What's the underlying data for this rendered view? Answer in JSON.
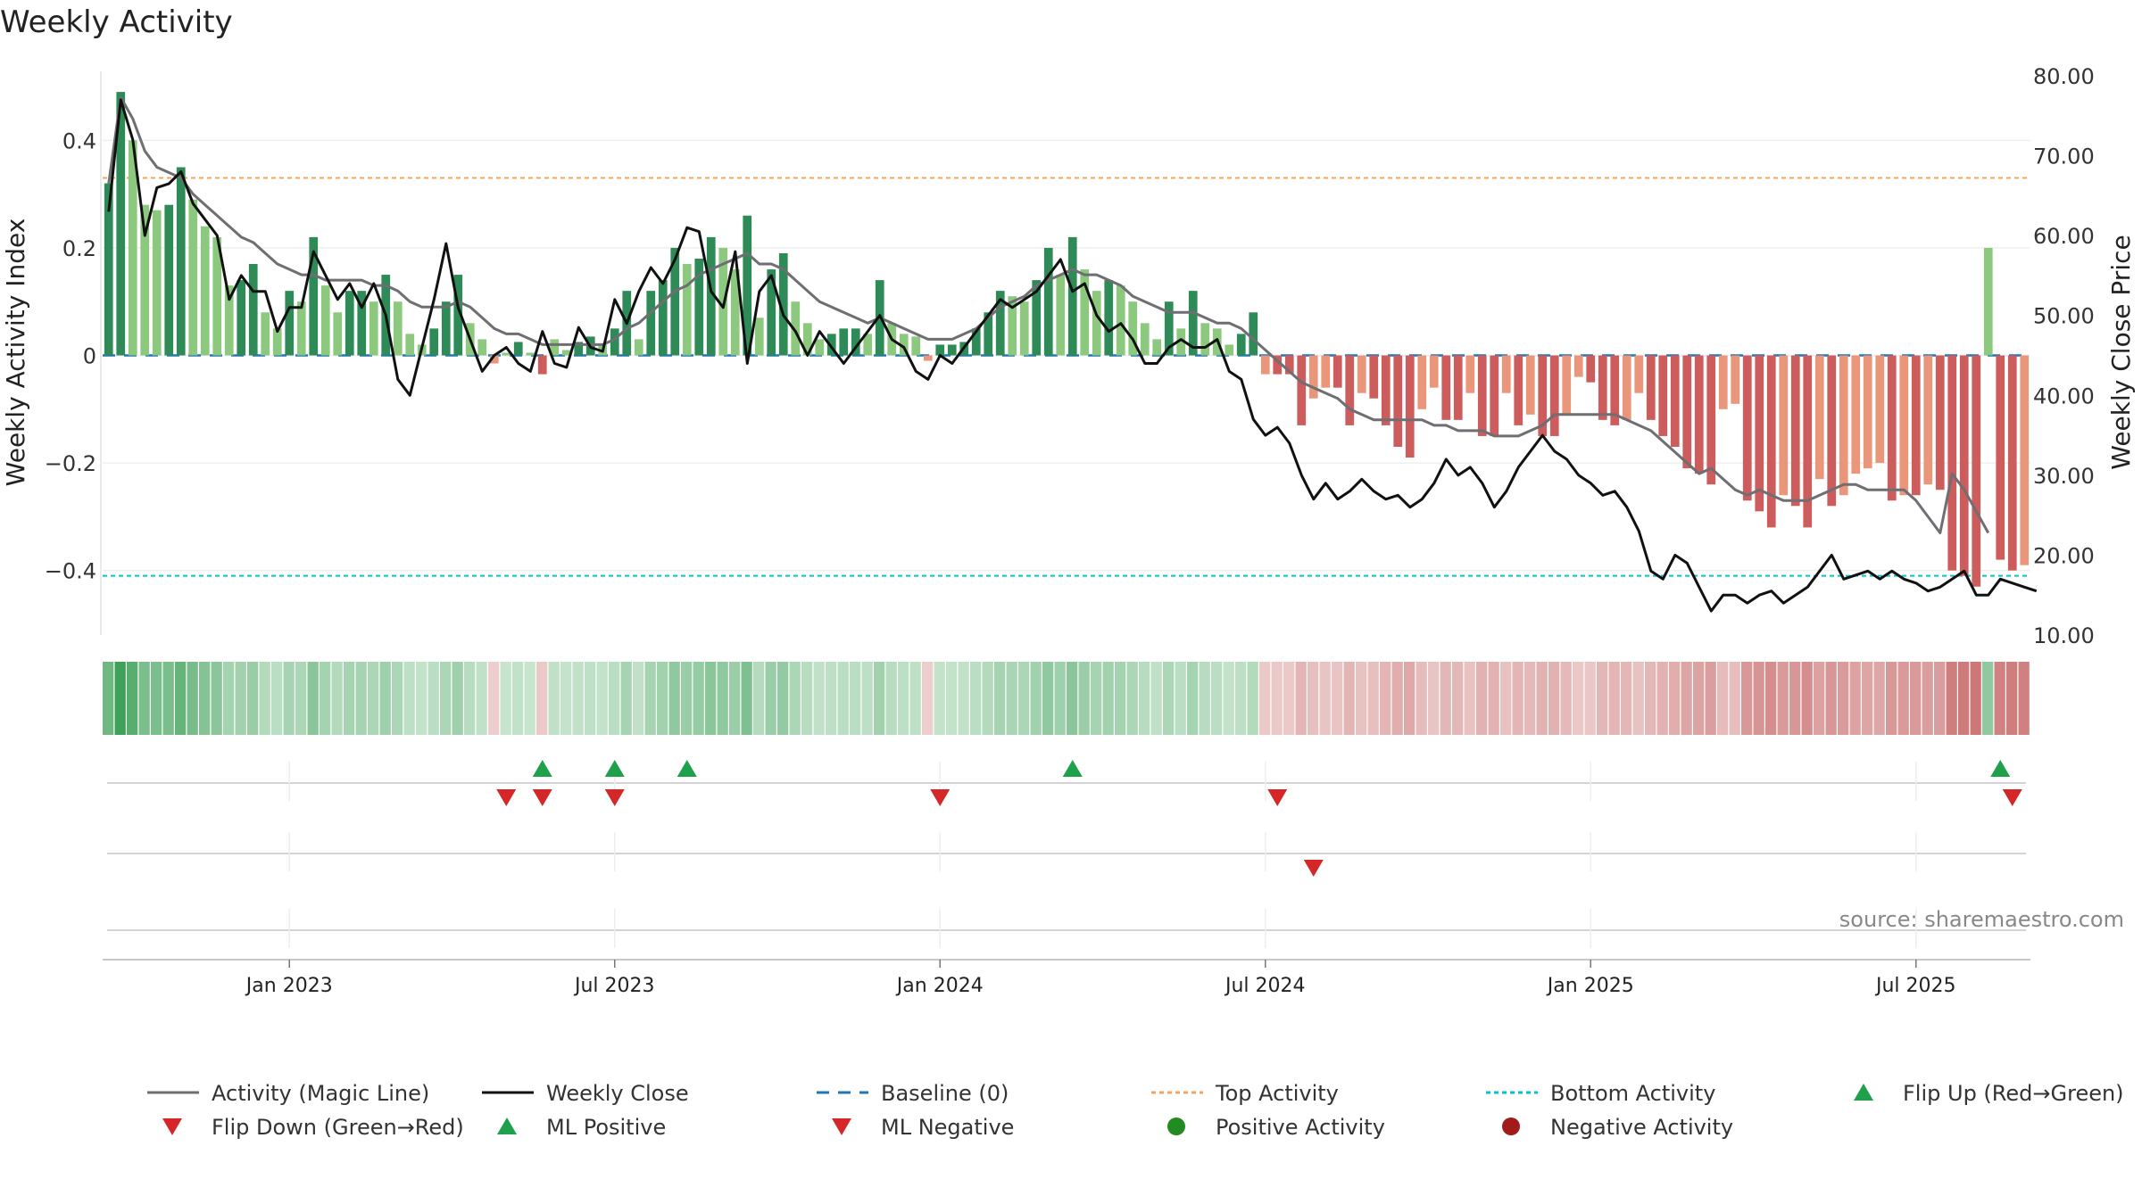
{
  "chart_data": {
    "type": "bar",
    "title": "Weekly Activity",
    "ylabel": "Weekly Activity Index",
    "ylabel_right": "Weekly Close Price",
    "source": "source: sharemaestro.com",
    "ylim": [
      -0.52,
      0.52
    ],
    "ylim_right": [
      10,
      80
    ],
    "yticks": [
      {
        "value": 0.4,
        "label": "0.4"
      },
      {
        "value": 0.2,
        "label": "0.2"
      },
      {
        "value": 0,
        "label": "0"
      },
      {
        "value": -0.2,
        "label": "−0.2"
      },
      {
        "value": -0.4,
        "label": "−0.4"
      }
    ],
    "yticks_right": [
      {
        "value": 80,
        "label": "80.00"
      },
      {
        "value": 70,
        "label": "70.00"
      },
      {
        "value": 60,
        "label": "60.00"
      },
      {
        "value": 50,
        "label": "50.00"
      },
      {
        "value": 40,
        "label": "40.00"
      },
      {
        "value": 30,
        "label": "30.00"
      },
      {
        "value": 20,
        "label": "20.00"
      },
      {
        "value": 10,
        "label": "10.00"
      }
    ],
    "xticks": [
      {
        "index": 15,
        "label": "Jan 2023"
      },
      {
        "index": 42,
        "label": "Jul 2023"
      },
      {
        "index": 69,
        "label": "Jan 2024"
      },
      {
        "index": 96,
        "label": "Jul 2024"
      },
      {
        "index": 123,
        "label": "Jan 2025"
      },
      {
        "index": 150,
        "label": "Jul 2025"
      }
    ],
    "top_activity": 0.33,
    "bottom_activity": -0.41,
    "activity": [
      0.32,
      0.49,
      0.4,
      0.28,
      0.27,
      0.28,
      0.35,
      0.29,
      0.24,
      0.22,
      0.13,
      0.14,
      0.17,
      0.08,
      0.05,
      0.12,
      0.1,
      0.22,
      0.13,
      0.08,
      0.12,
      0.12,
      0.1,
      0.15,
      0.1,
      0.04,
      0.02,
      0.05,
      0.1,
      0.15,
      0.06,
      0.03,
      -0.015,
      0.005,
      0.025,
      0.005,
      -0.035,
      0.03,
      0.01,
      0.025,
      0.035,
      0.02,
      0.05,
      0.12,
      0.03,
      0.12,
      0.14,
      0.2,
      0.17,
      0.18,
      0.22,
      0.2,
      0.16,
      0.26,
      0.07,
      0.16,
      0.19,
      0.1,
      0.06,
      0.03,
      0.04,
      0.05,
      0.05,
      0.04,
      0.14,
      0.06,
      0.04,
      0.035,
      -0.01,
      0.02,
      0.02,
      0.025,
      0.05,
      0.08,
      0.12,
      0.11,
      0.1,
      0.14,
      0.2,
      0.15,
      0.22,
      0.16,
      0.12,
      0.14,
      0.13,
      0.1,
      0.06,
      0.03,
      0.1,
      0.05,
      0.12,
      0.06,
      0.05,
      0.02,
      0.04,
      0.08,
      -0.035,
      -0.035,
      -0.035,
      -0.13,
      -0.08,
      -0.06,
      -0.06,
      -0.13,
      -0.07,
      -0.08,
      -0.13,
      -0.17,
      -0.19,
      -0.1,
      -0.06,
      -0.12,
      -0.12,
      -0.07,
      -0.15,
      -0.15,
      -0.07,
      -0.13,
      -0.11,
      -0.15,
      -0.15,
      -0.11,
      -0.04,
      -0.05,
      -0.12,
      -0.13,
      -0.12,
      -0.07,
      -0.12,
      -0.15,
      -0.17,
      -0.21,
      -0.22,
      -0.24,
      -0.1,
      -0.09,
      -0.27,
      -0.29,
      -0.32,
      -0.26,
      -0.28,
      -0.32,
      -0.23,
      -0.28,
      -0.26,
      -0.22,
      -0.21,
      -0.2,
      -0.27,
      -0.26,
      -0.26,
      -0.24,
      -0.25,
      -0.4,
      -0.41,
      -0.43,
      0.2,
      -0.38,
      -0.4,
      -0.39
    ],
    "magic_line": [
      0.32,
      0.48,
      0.44,
      0.38,
      0.35,
      0.34,
      0.33,
      0.3,
      0.28,
      0.26,
      0.24,
      0.22,
      0.21,
      0.19,
      0.17,
      0.16,
      0.15,
      0.15,
      0.14,
      0.14,
      0.14,
      0.14,
      0.13,
      0.13,
      0.12,
      0.1,
      0.09,
      0.09,
      0.09,
      0.1,
      0.09,
      0.07,
      0.05,
      0.04,
      0.04,
      0.03,
      0.02,
      0.02,
      0.02,
      0.02,
      0.02,
      0.02,
      0.03,
      0.05,
      0.06,
      0.08,
      0.1,
      0.12,
      0.13,
      0.15,
      0.16,
      0.17,
      0.18,
      0.19,
      0.17,
      0.17,
      0.16,
      0.14,
      0.12,
      0.1,
      0.09,
      0.08,
      0.07,
      0.06,
      0.07,
      0.06,
      0.05,
      0.04,
      0.03,
      0.03,
      0.03,
      0.04,
      0.05,
      0.07,
      0.09,
      0.1,
      0.11,
      0.13,
      0.14,
      0.15,
      0.16,
      0.15,
      0.15,
      0.14,
      0.13,
      0.11,
      0.1,
      0.09,
      0.08,
      0.08,
      0.08,
      0.07,
      0.06,
      0.06,
      0.05,
      0.03,
      0.01,
      -0.01,
      -0.03,
      -0.05,
      -0.06,
      -0.07,
      -0.08,
      -0.1,
      -0.11,
      -0.12,
      -0.12,
      -0.12,
      -0.12,
      -0.12,
      -0.13,
      -0.13,
      -0.14,
      -0.14,
      -0.14,
      -0.15,
      -0.15,
      -0.15,
      -0.14,
      -0.13,
      -0.11,
      -0.11,
      -0.11,
      -0.11,
      -0.11,
      -0.11,
      -0.12,
      -0.13,
      -0.14,
      -0.16,
      -0.18,
      -0.2,
      -0.22,
      -0.21,
      -0.23,
      -0.25,
      -0.26,
      -0.25,
      -0.26,
      -0.27,
      -0.27,
      -0.27,
      -0.26,
      -0.25,
      -0.24,
      -0.24,
      -0.25,
      -0.25,
      -0.25,
      -0.25,
      -0.27,
      -0.3,
      -0.33,
      -0.22,
      -0.25,
      -0.29,
      -0.33
    ],
    "weekly_close": [
      63,
      77,
      72,
      60,
      66,
      66.5,
      68,
      64,
      62,
      60,
      52,
      55,
      53,
      53,
      48,
      51,
      51,
      58,
      55,
      52,
      54,
      51,
      54,
      50,
      42,
      40,
      46,
      52,
      59,
      51,
      47,
      43,
      45,
      46,
      44,
      43,
      48,
      44,
      43.5,
      48.5,
      46,
      45.5,
      52,
      49,
      53,
      56,
      54,
      57,
      61,
      60.5,
      53,
      51,
      58,
      44,
      53,
      55,
      50,
      48,
      45,
      48,
      46,
      44,
      46,
      48,
      50,
      47,
      46,
      43,
      42,
      45,
      44,
      46,
      48,
      50,
      52,
      51,
      52,
      53,
      55,
      57,
      53,
      54,
      50,
      48,
      49,
      47,
      44,
      44,
      46,
      47,
      46,
      46,
      47,
      43,
      42,
      37,
      35,
      36,
      34,
      30,
      27,
      29,
      27,
      28,
      29.5,
      28,
      27,
      27.5,
      26,
      27,
      29,
      32,
      30,
      31,
      29,
      26,
      28,
      31,
      33,
      35,
      33,
      32,
      30,
      29,
      27.5,
      28,
      26,
      23,
      18,
      17,
      20,
      19,
      16,
      13,
      15,
      15,
      14,
      15,
      15.5,
      14,
      15,
      16,
      18,
      20,
      17,
      17.5,
      18,
      17,
      18,
      17,
      16.5,
      15.5,
      16,
      17,
      18,
      15,
      15,
      17,
      16.5,
      16,
      15.5
    ],
    "flips_up": [
      36,
      42,
      48,
      80,
      157
    ],
    "flips_down": [
      33,
      36,
      42,
      69,
      97,
      158
    ],
    "ml_negative": [
      100
    ],
    "legend": [
      {
        "label": "Activity (Magic Line)",
        "kind": "line-solid-gray"
      },
      {
        "label": "Weekly Close",
        "kind": "line-solid-black"
      },
      {
        "label": "Baseline (0)",
        "kind": "line-dash-blue"
      },
      {
        "label": "Top Activity",
        "kind": "line-dot-orange"
      },
      {
        "label": "Bottom Activity",
        "kind": "line-dot-cyan"
      },
      {
        "label": "Flip Up (Red→Green)",
        "kind": "triangle-up-green"
      },
      {
        "label": "Flip Down (Green→Red)",
        "kind": "triangle-down-red"
      },
      {
        "label": "ML Positive",
        "kind": "triangle-up-green"
      },
      {
        "label": "ML Negative",
        "kind": "triangle-down-red"
      },
      {
        "label": "Positive Activity",
        "kind": "circle-green"
      },
      {
        "label": "Negative Activity",
        "kind": "circle-red"
      }
    ]
  },
  "colors": {
    "pos_strong": "#2e8b57",
    "pos_light": "#8cc97f",
    "neg_strong": "#cd5c5c",
    "neg_light": "#e9967a",
    "magic_line": "#6e6e73",
    "close": "#111111",
    "baseline": "#1f77b4",
    "top": "#f4a460",
    "bottom": "#00c5cd",
    "marker_green": "#1fa04a",
    "marker_red": "#d62728",
    "dot_green": "#228b22",
    "dot_red": "#a11b1b"
  }
}
